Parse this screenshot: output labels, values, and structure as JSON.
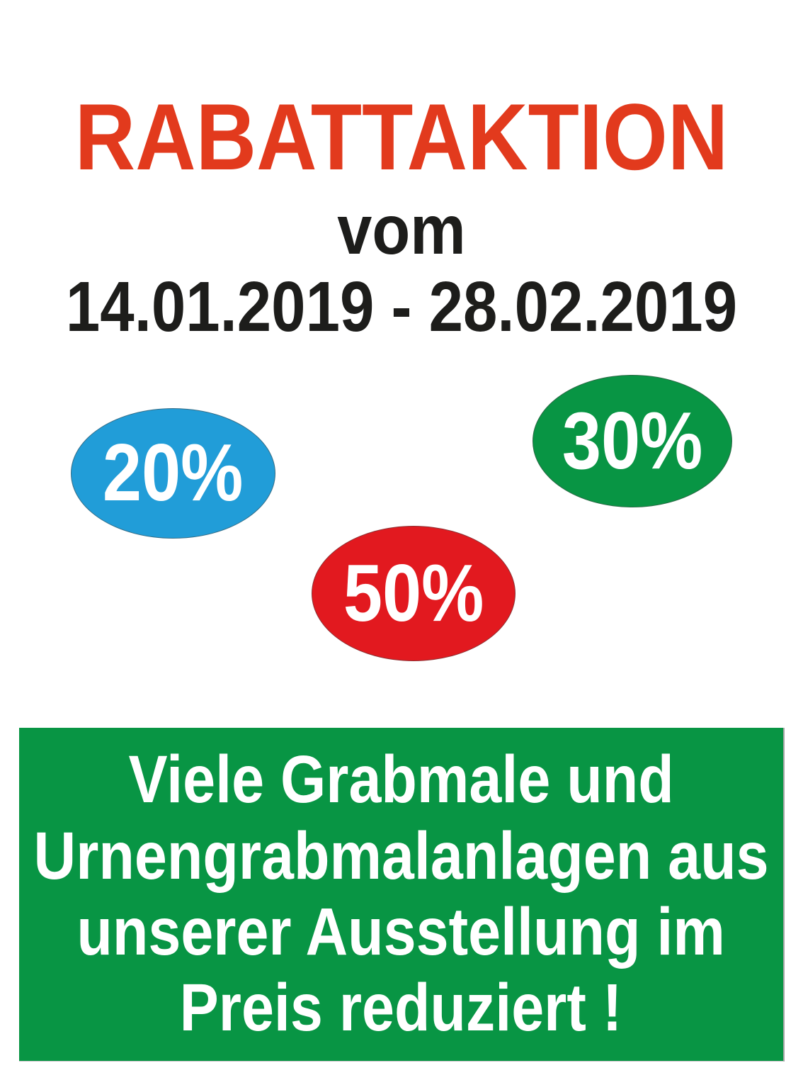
{
  "poster": {
    "title": "RABATTAKTION",
    "subtitle": "vom",
    "date_range": "14.01.2019 - 28.02.2019",
    "badges": [
      {
        "label": "20%",
        "color": "#219dd8",
        "shape": "ellipse"
      },
      {
        "label": "30%",
        "color": "#089544",
        "shape": "ellipse"
      },
      {
        "label": "50%",
        "color": "#e2191f",
        "shape": "ellipse"
      }
    ],
    "banner": {
      "background_color": "#089544",
      "text_color": "#ffffff",
      "lines": [
        "Viele Grabmale und",
        "Urnengrabmalanlagen aus",
        "unserer Ausstellung im",
        "Preis reduziert !"
      ]
    },
    "colors": {
      "title_red": "#e23a1d",
      "text_black": "#1d1d1b",
      "page_background": "#ffffff"
    }
  }
}
